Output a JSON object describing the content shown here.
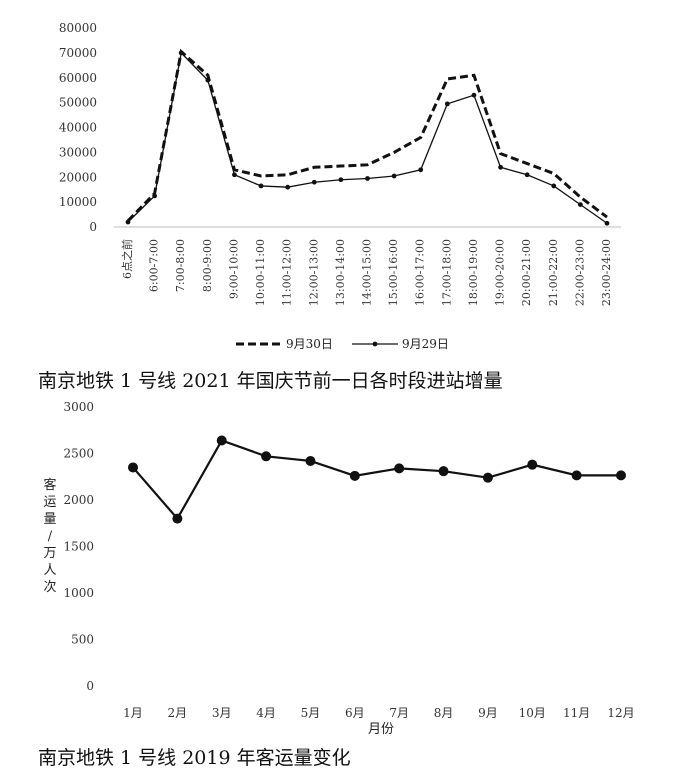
{
  "chart_data": [
    {
      "type": "line",
      "title": "南京地铁 1 号线 2021 年国庆节前一日各时段进站增量",
      "categories": [
        "6点之前",
        "6:00-7:00",
        "7:00-8:00",
        "8:00-9:00",
        "9:00-10:00",
        "10:00-11:00",
        "11:00-12:00",
        "12:00-13:00",
        "13:00-14:00",
        "14:00-15:00",
        "15:00-16:00",
        "16:00-17:00",
        "17:00-18:00",
        "18:00-19:00",
        "19:00-20:00",
        "20:00-21:00",
        "21:00-22:00",
        "22:00-23:00",
        "23:00-24:00"
      ],
      "series": [
        {
          "name": "9月30日",
          "style": "dashed",
          "values": [
            2500,
            13500,
            70500,
            61000,
            23000,
            20500,
            21000,
            24000,
            24500,
            25000,
            30000,
            36000,
            59500,
            61000,
            29500,
            25500,
            21500,
            12000,
            4000
          ]
        },
        {
          "name": "9月29日",
          "style": "solid-marker",
          "values": [
            2000,
            12500,
            70000,
            59000,
            21000,
            16500,
            16000,
            18000,
            19000,
            19500,
            20500,
            23000,
            49500,
            53000,
            24000,
            21000,
            16500,
            9000,
            1500
          ]
        }
      ],
      "ylim": [
        0,
        80000
      ],
      "yticks": [
        0,
        10000,
        20000,
        30000,
        40000,
        50000,
        60000,
        70000,
        80000
      ],
      "legend": "bottom-center",
      "grid": false
    },
    {
      "type": "line",
      "title": "南京地铁 1 号线 2019 年客运量变化",
      "categories": [
        "1月",
        "2月",
        "3月",
        "4月",
        "5月",
        "6月",
        "7月",
        "8月",
        "9月",
        "10月",
        "11月",
        "12月"
      ],
      "series": [
        {
          "values": [
            2350,
            1800,
            2640,
            2470,
            2420,
            2260,
            2340,
            2310,
            2240,
            2380,
            2265,
            2265
          ]
        }
      ],
      "xlabel": "月份",
      "ylabel": "客运量/万人次",
      "ylim": [
        0,
        3000
      ],
      "yticks": [
        0,
        500,
        1000,
        1500,
        2000,
        2500,
        3000
      ],
      "grid": false
    }
  ]
}
